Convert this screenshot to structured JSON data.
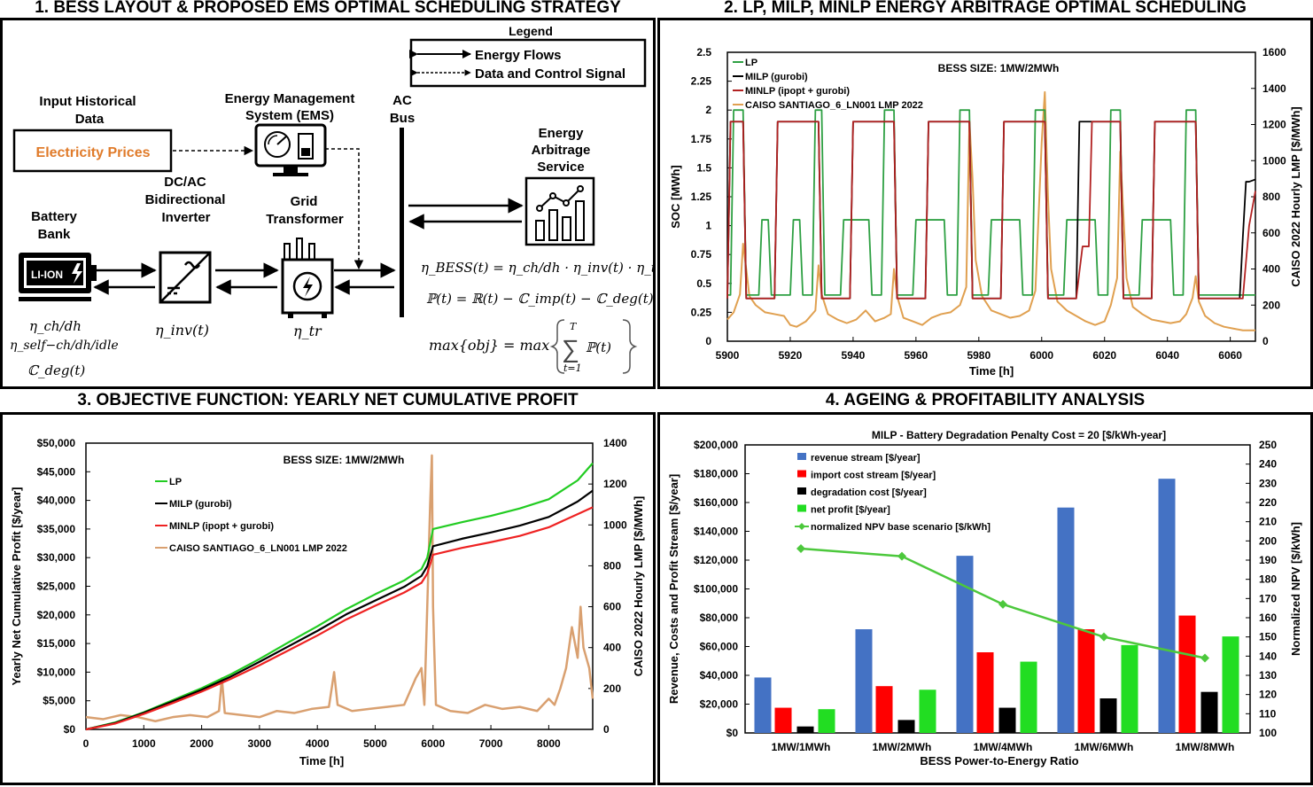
{
  "titles": {
    "p1": "1. BESS LAYOUT & PROPOSED EMS OPTIMAL SCHEDULING STRATEGY",
    "p2": "2. LP, MILP, MINLP ENERGY ARBITRAGE OPTIMAL SCHEDULING",
    "p3": "3. OBJECTIVE FUNCTION: YEARLY NET CUMULATIVE PROFIT",
    "p4": "4. AGEING & PROFITABILITY ANALYSIS"
  },
  "layout": {
    "legend_title": "Legend",
    "legend_energy": "Energy Flows",
    "legend_data": "Data and Control Signal",
    "input_hist": [
      "Input Historical",
      "Data"
    ],
    "electricity_prices": "Electricity Prices",
    "ems": [
      "Energy Management",
      "System (EMS)"
    ],
    "ac_bus": [
      "AC",
      "Bus"
    ],
    "arbitrage": [
      "Energy",
      "Arbitrage",
      "Service"
    ],
    "battery": [
      "Battery",
      "Bank"
    ],
    "battery_label": "LI-ION",
    "inverter": [
      "DC/AC",
      "Bidirectional",
      "Inverter"
    ],
    "transformer": [
      "Grid",
      "Transformer"
    ],
    "eta_ch": "η_ch/dh",
    "eta_self": "η_self−ch/dh/idle",
    "c_deg": "ℂ_deg(t)",
    "eta_inv": "η_inv(t)",
    "eta_tr": "η_tr",
    "eq1": "η_BESS(t) = η_ch/dh · η_inv(t) · η_tr",
    "eq2": "ℙ(t) = ℝ(t) − ℂ_imp(t) − ℂ_deg(t)",
    "eq3_left": "max{obj} = max",
    "eq3_sum": "∑",
    "eq3_top": "T",
    "eq3_bottom": "t=1",
    "eq3_term": "ℙ(t)",
    "colors": {
      "prices": "#E07B2A"
    }
  },
  "chart_data": [
    {
      "type": "line",
      "title": "BESS SIZE: 1MW/2MWh",
      "xlabel": "Time [h]",
      "ylabel": "SOC [MWh]",
      "y2label": "CAISO 2022 Hourly LMP [$/MWh]",
      "xlim": [
        5900,
        6068
      ],
      "ylim": [
        0,
        2.5
      ],
      "y2lim": [
        0,
        1600
      ],
      "xticks": [
        5900,
        5920,
        5940,
        5960,
        5980,
        6000,
        6020,
        6040,
        6060
      ],
      "yticks": [
        "0",
        "0.25",
        "0.5",
        "0.75",
        "1",
        "1.25",
        "1.5",
        "1.75",
        "2",
        "2.25",
        "2.5"
      ],
      "y2ticks": [
        0,
        200,
        400,
        600,
        800,
        1000,
        1200,
        1400,
        1600
      ],
      "legend": [
        "LP",
        "MILP (gurobi)",
        "MINLP (ipopt + gurobi)",
        "CAISO SANTIAGO_6_LN001 LMP 2022"
      ],
      "series": [
        {
          "name": "LP",
          "color": "#2EA043",
          "x": [
            5900,
            5901,
            5902,
            5903,
            5905,
            5906,
            5907,
            5910,
            5911,
            5913,
            5914,
            5920,
            5921,
            5923,
            5924,
            5927,
            5928,
            5930,
            5931,
            5936,
            5937,
            5945,
            5946,
            5949,
            5950,
            5953,
            5954,
            5959,
            5960,
            5969,
            5970,
            5973,
            5974,
            5977,
            5978,
            5983,
            5984,
            5993,
            5994,
            5997,
            5998,
            6001,
            6002,
            6007,
            6008,
            6017,
            6018,
            6021,
            6022,
            6025,
            6026,
            6031,
            6032,
            6041,
            6042,
            6045,
            6046,
            6049,
            6050,
            6055,
            6056,
            6068
          ],
          "y": [
            0.4,
            0.4,
            2.0,
            2.0,
            2.0,
            0.4,
            0.4,
            0.4,
            1.05,
            1.05,
            0.4,
            0.4,
            1.05,
            1.05,
            0.4,
            0.4,
            2.0,
            2.0,
            0.4,
            0.4,
            1.05,
            1.05,
            0.4,
            0.4,
            2.0,
            2.0,
            0.4,
            0.4,
            1.05,
            1.05,
            0.4,
            0.4,
            2.0,
            2.0,
            0.4,
            0.4,
            1.05,
            1.05,
            0.4,
            0.4,
            2.0,
            2.0,
            0.4,
            0.4,
            1.05,
            1.05,
            0.4,
            0.4,
            2.0,
            2.0,
            0.4,
            0.4,
            1.05,
            1.05,
            0.4,
            0.4,
            2.0,
            2.0,
            0.4,
            0.4,
            0.4,
            0.4
          ]
        },
        {
          "name": "MILP (gurobi)",
          "color": "#000000",
          "x": [
            5900,
            5901,
            5902,
            5905,
            5906,
            5915,
            5916,
            5929,
            5930,
            5939,
            5940,
            5953,
            5954,
            5963,
            5964,
            5977,
            5978,
            5987,
            5988,
            6001,
            6002,
            6011,
            6012,
            6025,
            6026,
            6035,
            6036,
            6049,
            6050,
            6063,
            6064,
            6065,
            6066,
            6068
          ],
          "y": [
            0.37,
            1.9,
            1.9,
            1.9,
            0.37,
            0.37,
            1.9,
            1.9,
            0.37,
            0.37,
            1.9,
            1.9,
            0.37,
            0.37,
            1.9,
            1.9,
            0.37,
            0.37,
            1.9,
            1.9,
            0.37,
            0.37,
            1.9,
            1.9,
            0.37,
            0.37,
            1.9,
            1.9,
            0.37,
            0.37,
            0.9,
            1.38,
            1.38,
            1.4
          ]
        },
        {
          "name": "MINLP (ipopt + gurobi)",
          "color": "#B22222",
          "x": [
            5900,
            5901,
            5905,
            5906,
            5915,
            5916,
            5929,
            5930,
            5939,
            5940,
            5953,
            5954,
            5963,
            5964,
            5977,
            5978,
            5987,
            5988,
            6001,
            6002,
            6011,
            6012,
            6013,
            6015,
            6016,
            6025,
            6026,
            6035,
            6036,
            6049,
            6050,
            6064,
            6066,
            6068
          ],
          "y": [
            0.37,
            1.9,
            1.9,
            0.37,
            0.37,
            1.9,
            1.9,
            0.37,
            0.37,
            1.9,
            1.9,
            0.37,
            0.37,
            1.9,
            1.9,
            0.37,
            0.37,
            1.9,
            1.9,
            0.37,
            0.37,
            0.6,
            0.82,
            0.82,
            1.9,
            1.9,
            0.37,
            0.37,
            1.9,
            1.9,
            0.37,
            0.37,
            1.0,
            1.3
          ]
        },
        {
          "name": "CAISO SANTIAGO_6_LN001 LMP 2022",
          "color": "#E0A050",
          "axis": "y2",
          "x": [
            5900,
            5902,
            5904,
            5905,
            5906,
            5907,
            5909,
            5912,
            5915,
            5918,
            5920,
            5922,
            5925,
            5928,
            5929,
            5930,
            5932,
            5935,
            5938,
            5941,
            5944,
            5947,
            5950,
            5952,
            5953,
            5954,
            5956,
            5959,
            5962,
            5965,
            5968,
            5971,
            5974,
            5976,
            5977,
            5978,
            5979,
            5981,
            5984,
            5987,
            5990,
            5993,
            5996,
            5998,
            6000,
            6001,
            6002,
            6003,
            6005,
            6008,
            6011,
            6014,
            6017,
            6020,
            6022,
            6024,
            6025,
            6026,
            6027,
            6029,
            6032,
            6035,
            6038,
            6041,
            6044,
            6046,
            6048,
            6049,
            6050,
            6052,
            6055,
            6058,
            6061,
            6064,
            6068
          ],
          "y": [
            120,
            160,
            260,
            540,
            400,
            250,
            200,
            160,
            150,
            140,
            90,
            80,
            110,
            170,
            420,
            260,
            150,
            120,
            100,
            120,
            170,
            110,
            130,
            150,
            400,
            250,
            130,
            110,
            90,
            130,
            150,
            160,
            200,
            300,
            1220,
            900,
            450,
            250,
            170,
            150,
            130,
            140,
            170,
            280,
            1100,
            1380,
            800,
            400,
            220,
            170,
            140,
            110,
            90,
            110,
            200,
            350,
            1050,
            700,
            350,
            190,
            150,
            120,
            110,
            100,
            110,
            150,
            240,
            360,
            220,
            140,
            100,
            80,
            70,
            60,
            60
          ]
        }
      ]
    },
    {
      "type": "line",
      "title": "BESS SIZE: 1MW/2MWh",
      "xlabel": "Time [h]",
      "ylabel": "Yearly Net Cumulative Profit [$/year]",
      "y2label": "CAISO 2022 Hourly LMP [$/MWh]",
      "xlim": [
        0,
        8760
      ],
      "ylim": [
        0,
        50000
      ],
      "y2lim": [
        0,
        1400
      ],
      "xticks": [
        0,
        1000,
        2000,
        3000,
        4000,
        5000,
        6000,
        7000,
        8000
      ],
      "yticks": [
        "$0",
        "$5,000",
        "$10,000",
        "$15,000",
        "$20,000",
        "$25,000",
        "$30,000",
        "$35,000",
        "$40,000",
        "$45,000",
        "$50,000"
      ],
      "y2ticks": [
        0,
        200,
        400,
        600,
        800,
        1000,
        1200,
        1400
      ],
      "legend": [
        "LP",
        "MILP (gurobi)",
        "MINLP (ipopt + gurobi)",
        "CAISO SANTIAGO_6_LN001 LMP 2022"
      ],
      "series": [
        {
          "name": "LP",
          "color": "#22CC22",
          "x": [
            0,
            500,
            1000,
            1500,
            2000,
            2500,
            3000,
            3500,
            4000,
            4500,
            5000,
            5500,
            5800,
            5900,
            6000,
            6500,
            7000,
            7500,
            8000,
            8500,
            8760
          ],
          "y": [
            0,
            1200,
            3000,
            5100,
            7200,
            9600,
            12300,
            15200,
            18000,
            21000,
            23600,
            26000,
            28000,
            30000,
            35000,
            36200,
            37300,
            38600,
            40200,
            43500,
            46500
          ]
        },
        {
          "name": "MILP (gurobi)",
          "color": "#000000",
          "x": [
            0,
            500,
            1000,
            1500,
            2000,
            2500,
            3000,
            3500,
            4000,
            4500,
            5000,
            5500,
            5800,
            5900,
            6000,
            6500,
            7000,
            7500,
            8000,
            8500,
            8760
          ],
          "y": [
            0,
            1100,
            2900,
            4900,
            6900,
            9200,
            11800,
            14500,
            17200,
            20100,
            22500,
            24900,
            26800,
            28500,
            32000,
            33300,
            34400,
            35600,
            37100,
            39800,
            41700
          ]
        },
        {
          "name": "MINLP (ipopt + gurobi)",
          "color": "#EE2222",
          "x": [
            0,
            500,
            1000,
            1500,
            2000,
            2500,
            3000,
            3500,
            4000,
            4500,
            5000,
            5500,
            5800,
            5900,
            6000,
            6500,
            7000,
            7500,
            8000,
            8500,
            8760
          ],
          "y": [
            0,
            1000,
            2700,
            4600,
            6600,
            8800,
            11200,
            13800,
            16400,
            19200,
            21600,
            23900,
            25600,
            27200,
            30500,
            31700,
            32700,
            33800,
            35300,
            37600,
            38800
          ]
        },
        {
          "name": "CAISO SANTIAGO_6_LN001 LMP 2022",
          "color": "#D9A070",
          "axis": "y2",
          "x": [
            0,
            300,
            600,
            900,
            1200,
            1500,
            1800,
            2100,
            2300,
            2350,
            2400,
            2700,
            3000,
            3300,
            3600,
            3900,
            4200,
            4290,
            4350,
            4600,
            4900,
            5200,
            5500,
            5700,
            5800,
            5850,
            5900,
            5950,
            5980,
            6000,
            6020,
            6050,
            6300,
            6600,
            6900,
            7200,
            7500,
            7800,
            8000,
            8100,
            8200,
            8300,
            8400,
            8500,
            8550,
            8600,
            8700,
            8760
          ],
          "y": [
            60,
            50,
            70,
            60,
            40,
            60,
            70,
            60,
            90,
            250,
            80,
            70,
            60,
            90,
            80,
            100,
            110,
            280,
            120,
            90,
            100,
            110,
            120,
            250,
            300,
            120,
            600,
            1100,
            1340,
            600,
            400,
            120,
            90,
            80,
            120,
            100,
            110,
            90,
            150,
            120,
            200,
            300,
            500,
            350,
            600,
            400,
            300,
            150
          ]
        }
      ]
    },
    {
      "type": "bar",
      "title": "MILP - Battery Degradation Penalty Cost = 20 [$/kWh-year]",
      "xlabel": "BESS Power-to-Energy Ratio",
      "ylabel": "Revenue, Costs and Profit Stream [$/year]",
      "y2label": "Normalized NPV [$/kWh]",
      "categories": [
        "1MW/1MWh",
        "1MW/2MWh",
        "1MW/4MWh",
        "1MW/6MWh",
        "1MW/8MWh"
      ],
      "ylim": [
        0,
        200000
      ],
      "y2lim": [
        100,
        250
      ],
      "yticks": [
        "$0",
        "$20,000",
        "$40,000",
        "$60,000",
        "$80,000",
        "$100,000",
        "$120,000",
        "$140,000",
        "$160,000",
        "$180,000",
        "$200,000"
      ],
      "y2ticks": [
        100,
        110,
        120,
        130,
        140,
        150,
        160,
        170,
        180,
        190,
        200,
        210,
        220,
        230,
        240,
        250
      ],
      "legend": [
        "revenue stream [$/year]",
        "import cost stream [$/year]",
        "degradation cost [$/year]",
        "net profit [$/year]",
        "normalized NPV base scenario [$/kWh]"
      ],
      "series": [
        {
          "name": "revenue stream [$/year]",
          "color": "#4472C4",
          "values": [
            38500,
            72000,
            123000,
            156500,
            176500
          ]
        },
        {
          "name": "import cost stream [$/year]",
          "color": "#FF0000",
          "values": [
            17500,
            32500,
            56000,
            72000,
            81500
          ]
        },
        {
          "name": "degradation cost [$/year]",
          "color": "#000000",
          "values": [
            4500,
            9000,
            17500,
            24000,
            28500
          ]
        },
        {
          "name": "net profit [$/year]",
          "color": "#22DD22",
          "values": [
            16500,
            30000,
            49500,
            61000,
            67000
          ]
        },
        {
          "name": "normalized NPV base scenario [$/kWh]",
          "color": "#4CC83C",
          "axis": "y2",
          "values": [
            196,
            192,
            167,
            150,
            139
          ]
        }
      ]
    }
  ]
}
